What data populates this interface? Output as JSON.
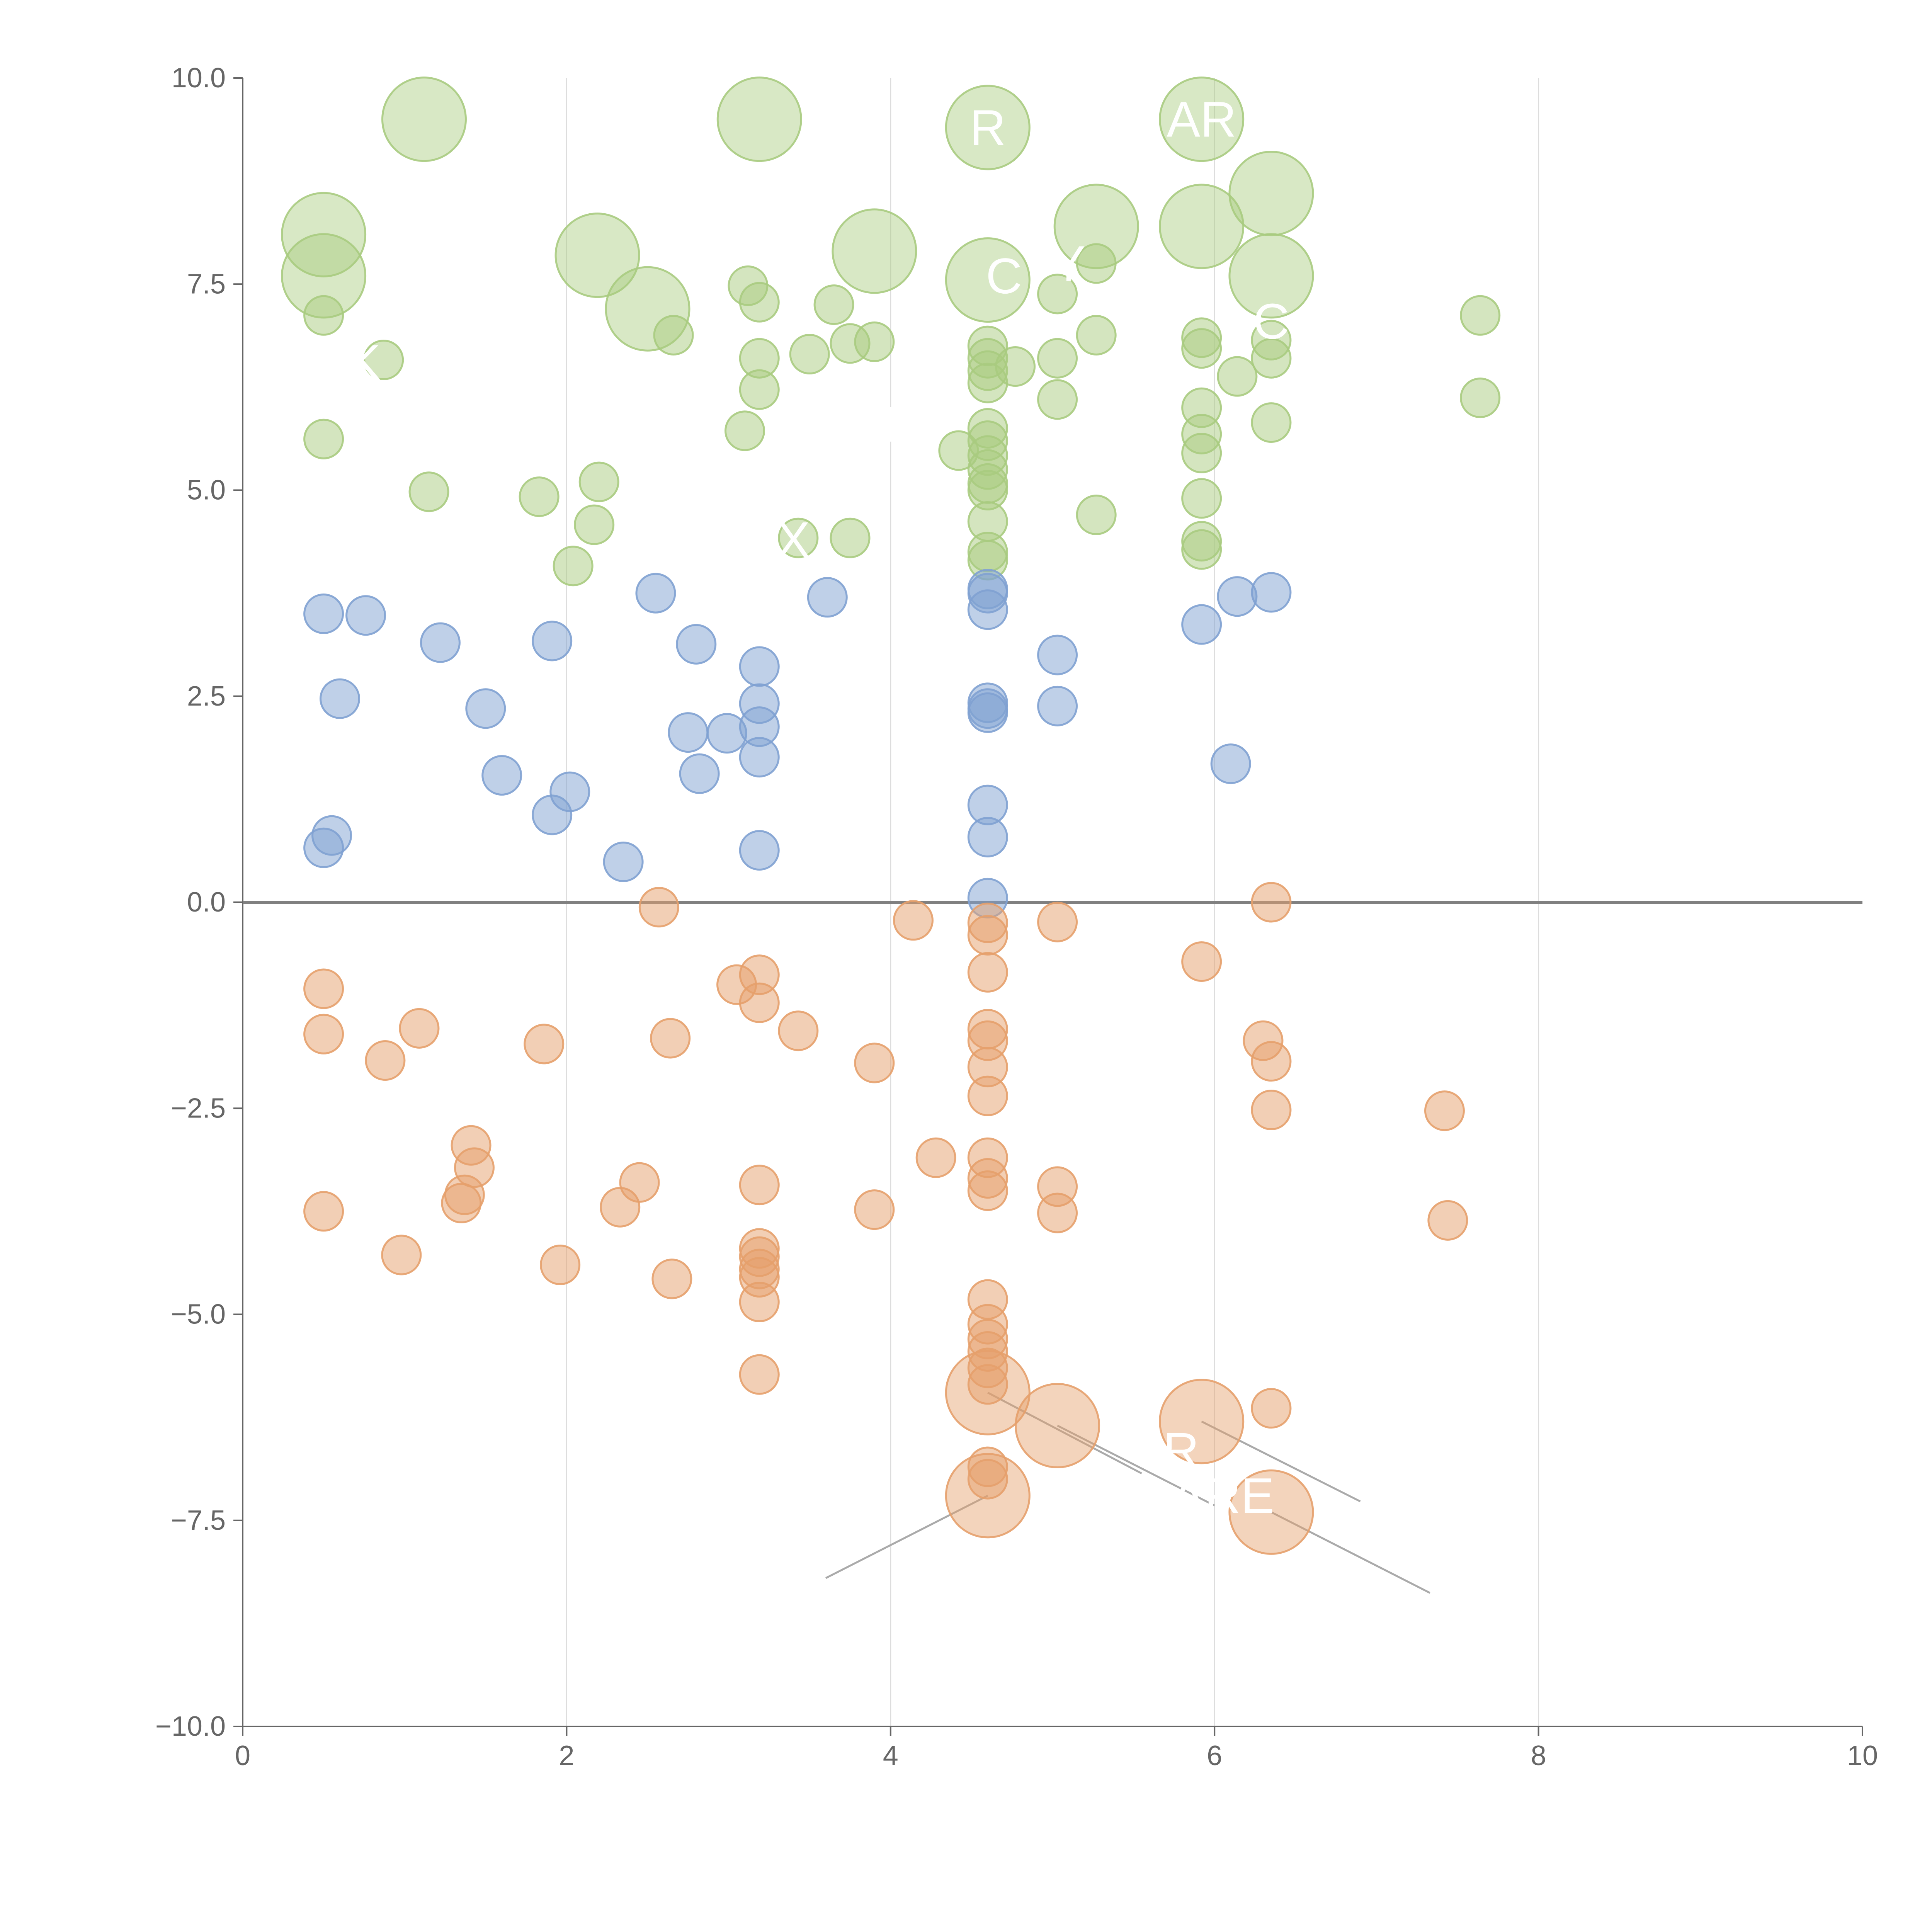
{
  "chart_data": {
    "type": "scatter",
    "title": "",
    "xlabel": "",
    "ylabel": "",
    "xlim": [
      0,
      10
    ],
    "ylim": [
      -10,
      10
    ],
    "x_ticks": [
      "0",
      "2",
      "4",
      "6",
      "8",
      "10"
    ],
    "y_ticks": [
      "10.0",
      "7.5",
      "5.0",
      "2.5",
      "0.0",
      "−2.5",
      "−5.0",
      "−7.5",
      "−10.0"
    ],
    "x_tick_values": [
      0,
      2,
      4,
      6,
      8,
      10
    ],
    "y_tick_values": [
      10,
      7.5,
      5,
      2.5,
      0,
      -2.5,
      -5,
      -7.5,
      -10
    ],
    "vertical_gridlines": [
      2,
      4,
      6,
      8
    ],
    "reference_line_y": 0,
    "colors": {
      "green": "#a9cb7f",
      "blue": "#7fa1d1",
      "orange": "#e5a06b",
      "axis": "#666666",
      "grid": "#dddddd",
      "zero_line": "#808080",
      "leader": "#aaaaaa"
    },
    "series": [
      {
        "name": "green",
        "color": "#a9cb7f",
        "points": [
          {
            "x": 1.12,
            "y": 9.5,
            "big": true
          },
          {
            "x": 3.19,
            "y": 9.5,
            "big": true
          },
          {
            "x": 4.6,
            "y": 9.4,
            "big": true
          },
          {
            "x": 5.92,
            "y": 9.5,
            "big": true
          },
          {
            "x": 6.35,
            "y": 8.6,
            "big": true
          },
          {
            "x": 0.5,
            "y": 8.1,
            "big": true
          },
          {
            "x": 0.5,
            "y": 7.6,
            "big": true
          },
          {
            "x": 2.19,
            "y": 7.85,
            "big": true
          },
          {
            "x": 3.9,
            "y": 7.9,
            "big": true
          },
          {
            "x": 2.5,
            "y": 7.2,
            "big": true
          },
          {
            "x": 4.6,
            "y": 7.55,
            "big": true
          },
          {
            "x": 5.27,
            "y": 8.2,
            "big": true
          },
          {
            "x": 5.92,
            "y": 8.2,
            "big": true
          },
          {
            "x": 6.35,
            "y": 7.6,
            "big": true
          },
          {
            "x": 0.5,
            "y": 7.12
          },
          {
            "x": 0.87,
            "y": 6.58
          },
          {
            "x": 0.5,
            "y": 5.62
          },
          {
            "x": 1.15,
            "y": 4.98
          },
          {
            "x": 1.83,
            "y": 4.92
          },
          {
            "x": 2.04,
            "y": 4.08
          },
          {
            "x": 2.17,
            "y": 4.58
          },
          {
            "x": 2.2,
            "y": 5.1
          },
          {
            "x": 2.66,
            "y": 6.88
          },
          {
            "x": 3.1,
            "y": 5.72
          },
          {
            "x": 3.12,
            "y": 7.48
          },
          {
            "x": 3.19,
            "y": 7.28
          },
          {
            "x": 3.19,
            "y": 6.6
          },
          {
            "x": 3.19,
            "y": 6.22
          },
          {
            "x": 3.5,
            "y": 6.65
          },
          {
            "x": 3.43,
            "y": 4.42
          },
          {
            "x": 3.65,
            "y": 7.25
          },
          {
            "x": 3.75,
            "y": 6.78
          },
          {
            "x": 3.9,
            "y": 6.8
          },
          {
            "x": 3.75,
            "y": 4.42
          },
          {
            "x": 4.42,
            "y": 5.48
          },
          {
            "x": 4.6,
            "y": 6.75
          },
          {
            "x": 4.6,
            "y": 6.6
          },
          {
            "x": 4.6,
            "y": 6.45
          },
          {
            "x": 4.6,
            "y": 6.3
          },
          {
            "x": 4.6,
            "y": 5.75
          },
          {
            "x": 4.6,
            "y": 5.6
          },
          {
            "x": 4.6,
            "y": 5.42
          },
          {
            "x": 4.6,
            "y": 5.25
          },
          {
            "x": 4.6,
            "y": 5.08
          },
          {
            "x": 4.6,
            "y": 5.0
          },
          {
            "x": 4.6,
            "y": 4.62
          },
          {
            "x": 4.6,
            "y": 4.25
          },
          {
            "x": 4.6,
            "y": 4.15
          },
          {
            "x": 4.77,
            "y": 6.5
          },
          {
            "x": 5.03,
            "y": 7.38
          },
          {
            "x": 5.03,
            "y": 6.6
          },
          {
            "x": 5.03,
            "y": 6.1
          },
          {
            "x": 5.27,
            "y": 7.75
          },
          {
            "x": 5.27,
            "y": 6.88
          },
          {
            "x": 5.27,
            "y": 4.7
          },
          {
            "x": 5.92,
            "y": 6.85
          },
          {
            "x": 5.92,
            "y": 6.72
          },
          {
            "x": 5.92,
            "y": 6.0
          },
          {
            "x": 5.92,
            "y": 5.68
          },
          {
            "x": 5.92,
            "y": 5.45
          },
          {
            "x": 5.92,
            "y": 4.9
          },
          {
            "x": 5.92,
            "y": 4.38
          },
          {
            "x": 5.92,
            "y": 4.28
          },
          {
            "x": 6.14,
            "y": 6.38
          },
          {
            "x": 6.35,
            "y": 6.82
          },
          {
            "x": 6.35,
            "y": 6.6
          },
          {
            "x": 6.35,
            "y": 5.82
          },
          {
            "x": 7.64,
            "y": 7.12
          },
          {
            "x": 7.64,
            "y": 6.12
          }
        ]
      },
      {
        "name": "blue",
        "color": "#7fa1d1",
        "points": [
          {
            "x": 0.5,
            "y": 3.5
          },
          {
            "x": 0.76,
            "y": 3.48
          },
          {
            "x": 0.6,
            "y": 2.47
          },
          {
            "x": 0.55,
            "y": 0.81
          },
          {
            "x": 0.5,
            "y": 0.66
          },
          {
            "x": 1.22,
            "y": 3.15
          },
          {
            "x": 1.5,
            "y": 2.35
          },
          {
            "x": 1.6,
            "y": 1.54
          },
          {
            "x": 1.91,
            "y": 3.17
          },
          {
            "x": 1.91,
            "y": 1.06
          },
          {
            "x": 2.02,
            "y": 1.34
          },
          {
            "x": 2.35,
            "y": 0.49
          },
          {
            "x": 2.55,
            "y": 3.75
          },
          {
            "x": 2.75,
            "y": 2.06
          },
          {
            "x": 2.8,
            "y": 3.13
          },
          {
            "x": 2.82,
            "y": 1.56
          },
          {
            "x": 2.99,
            "y": 2.05
          },
          {
            "x": 3.19,
            "y": 2.86
          },
          {
            "x": 3.19,
            "y": 2.41
          },
          {
            "x": 3.19,
            "y": 2.13
          },
          {
            "x": 3.19,
            "y": 1.76
          },
          {
            "x": 3.19,
            "y": 0.63
          },
          {
            "x": 3.61,
            "y": 3.7
          },
          {
            "x": 4.6,
            "y": 3.8
          },
          {
            "x": 4.6,
            "y": 3.75
          },
          {
            "x": 4.6,
            "y": 3.55
          },
          {
            "x": 4.6,
            "y": 2.42
          },
          {
            "x": 4.6,
            "y": 2.35
          },
          {
            "x": 4.6,
            "y": 2.3
          },
          {
            "x": 4.6,
            "y": 1.18
          },
          {
            "x": 4.6,
            "y": 0.79
          },
          {
            "x": 4.6,
            "y": 0.05
          },
          {
            "x": 5.03,
            "y": 3.0
          },
          {
            "x": 5.03,
            "y": 2.38
          },
          {
            "x": 5.92,
            "y": 3.37
          },
          {
            "x": 6.14,
            "y": 3.71
          },
          {
            "x": 6.35,
            "y": 3.76
          },
          {
            "x": 6.1,
            "y": 1.68
          }
        ]
      },
      {
        "name": "orange",
        "color": "#e5a06b",
        "points": [
          {
            "x": 4.6,
            "y": -5.95,
            "big": true
          },
          {
            "x": 5.03,
            "y": -6.35,
            "big": true
          },
          {
            "x": 5.92,
            "y": -6.3,
            "big": true
          },
          {
            "x": 4.6,
            "y": -7.2,
            "big": true
          },
          {
            "x": 6.35,
            "y": -7.4,
            "big": true
          },
          {
            "x": 0.5,
            "y": -1.05
          },
          {
            "x": 0.5,
            "y": -1.6
          },
          {
            "x": 0.88,
            "y": -1.92
          },
          {
            "x": 1.09,
            "y": -1.53
          },
          {
            "x": 0.5,
            "y": -3.75
          },
          {
            "x": 0.98,
            "y": -4.28
          },
          {
            "x": 1.35,
            "y": -3.65
          },
          {
            "x": 1.37,
            "y": -3.55
          },
          {
            "x": 1.41,
            "y": -2.95
          },
          {
            "x": 1.43,
            "y": -3.22
          },
          {
            "x": 1.86,
            "y": -1.72
          },
          {
            "x": 1.96,
            "y": -4.4
          },
          {
            "x": 2.33,
            "y": -3.7
          },
          {
            "x": 2.45,
            "y": -3.4
          },
          {
            "x": 2.57,
            "y": -0.06
          },
          {
            "x": 2.64,
            "y": -1.65
          },
          {
            "x": 2.65,
            "y": -4.57
          },
          {
            "x": 3.05,
            "y": -1.0
          },
          {
            "x": 3.19,
            "y": -0.88
          },
          {
            "x": 3.19,
            "y": -1.22
          },
          {
            "x": 3.19,
            "y": -3.43
          },
          {
            "x": 3.19,
            "y": -4.2
          },
          {
            "x": 3.19,
            "y": -4.3
          },
          {
            "x": 3.19,
            "y": -4.45
          },
          {
            "x": 3.19,
            "y": -4.55
          },
          {
            "x": 3.19,
            "y": -4.85
          },
          {
            "x": 3.19,
            "y": -5.73
          },
          {
            "x": 3.43,
            "y": -1.56
          },
          {
            "x": 3.9,
            "y": -1.95
          },
          {
            "x": 3.9,
            "y": -3.73
          },
          {
            "x": 4.14,
            "y": -0.22
          },
          {
            "x": 4.28,
            "y": -3.1
          },
          {
            "x": 4.6,
            "y": -0.25
          },
          {
            "x": 4.6,
            "y": -0.4
          },
          {
            "x": 4.6,
            "y": -0.85
          },
          {
            "x": 4.6,
            "y": -1.54
          },
          {
            "x": 4.6,
            "y": -1.68
          },
          {
            "x": 4.6,
            "y": -2.0
          },
          {
            "x": 4.6,
            "y": -2.35
          },
          {
            "x": 4.6,
            "y": -3.1
          },
          {
            "x": 4.6,
            "y": -3.35
          },
          {
            "x": 4.6,
            "y": -3.5
          },
          {
            "x": 4.6,
            "y": -4.82
          },
          {
            "x": 4.6,
            "y": -5.12
          },
          {
            "x": 4.6,
            "y": -5.3
          },
          {
            "x": 4.6,
            "y": -5.45
          },
          {
            "x": 4.6,
            "y": -5.65
          },
          {
            "x": 4.6,
            "y": -5.85
          },
          {
            "x": 4.6,
            "y": -6.85
          },
          {
            "x": 4.6,
            "y": -7.0
          },
          {
            "x": 5.03,
            "y": -0.24
          },
          {
            "x": 5.03,
            "y": -3.45
          },
          {
            "x": 5.03,
            "y": -3.77
          },
          {
            "x": 5.92,
            "y": -0.72
          },
          {
            "x": 6.3,
            "y": -1.68
          },
          {
            "x": 6.35,
            "y": -1.93
          },
          {
            "x": 6.35,
            "y": -2.52
          },
          {
            "x": 6.35,
            "y": 0.0
          },
          {
            "x": 6.35,
            "y": -6.14
          },
          {
            "x": 7.42,
            "y": -2.53
          },
          {
            "x": 7.44,
            "y": -3.86
          }
        ]
      }
    ],
    "annotations": [
      {
        "text": "R",
        "x": 4.6,
        "y": 9.4
      },
      {
        "text": "AR",
        "x": 5.92,
        "y": 9.5
      },
      {
        "text": "C",
        "x": 4.7,
        "y": 7.6
      },
      {
        "text": "Y",
        "x": 5.1,
        "y": 7.75
      },
      {
        "text": "C",
        "x": 6.35,
        "y": 7.05
      },
      {
        "text": "K",
        "x": 0.75,
        "y": 6.55
      },
      {
        "text": "T",
        "x": 4.0,
        "y": 5.8
      },
      {
        "text": "X",
        "x": 3.4,
        "y": 4.4
      },
      {
        "text": "IR",
        "x": 5.75,
        "y": -6.65
      },
      {
        "text": "ARE",
        "x": 6.05,
        "y": -7.2
      }
    ],
    "leader_lines": [
      {
        "x1": 4.6,
        "y1": -7.2,
        "x2": 3.6,
        "y2": -8.2
      },
      {
        "x1": 4.6,
        "y1": -5.95,
        "x2": 5.55,
        "y2": -6.93
      },
      {
        "x1": 5.03,
        "y1": -6.35,
        "x2": 6.0,
        "y2": -7.32
      },
      {
        "x1": 5.92,
        "y1": -6.3,
        "x2": 6.9,
        "y2": -7.27
      },
      {
        "x1": 6.35,
        "y1": -7.4,
        "x2": 7.33,
        "y2": -8.38
      }
    ]
  }
}
